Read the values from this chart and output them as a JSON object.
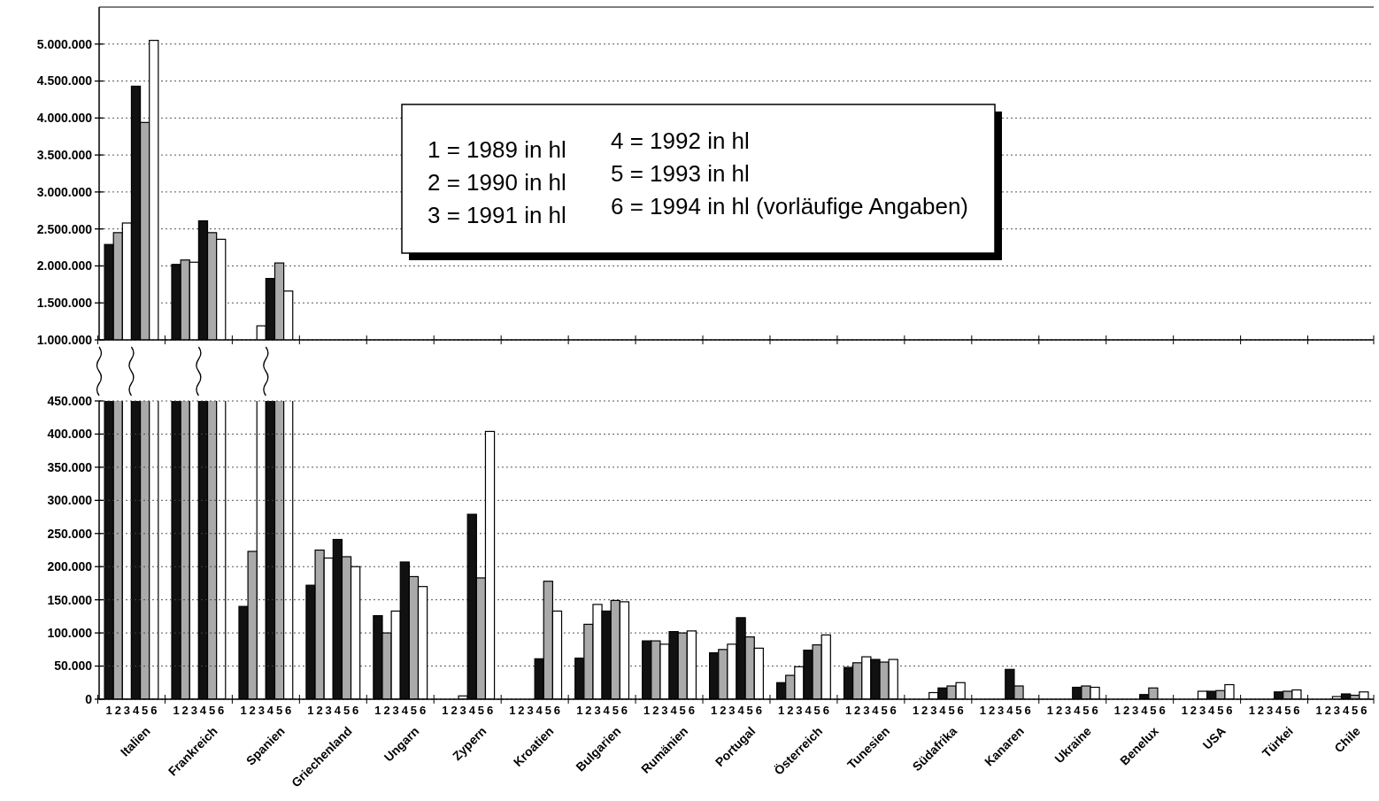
{
  "chart_data": [
    {
      "type": "bar",
      "categories": [
        null,
        null,
        null,
        null,
        null,
        null,
        null,
        null,
        null,
        null,
        null,
        null,
        null,
        null,
        null,
        null,
        null,
        null,
        null
      ],
      "series": [
        {
          "color": "#111111",
          "values": [
            2290000,
            2020000,
            null,
            null,
            null,
            null,
            null,
            null,
            null,
            null,
            null,
            null,
            null,
            null,
            null,
            null,
            null,
            null,
            null
          ]
        },
        {
          "color": "#aaaaaa",
          "values": [
            2450000,
            2080000,
            null,
            null,
            null,
            null,
            null,
            null,
            null,
            null,
            null,
            null,
            null,
            null,
            null,
            null,
            null,
            null,
            null
          ]
        },
        {
          "color": "#ffffff",
          "values": [
            2580000,
            2050000,
            1190000,
            null,
            null,
            null,
            null,
            null,
            null,
            null,
            null,
            null,
            null,
            null,
            null,
            null,
            null,
            null,
            null
          ]
        },
        {
          "color": "#111111",
          "values": [
            4430000,
            2610000,
            1830000,
            null,
            null,
            null,
            null,
            null,
            null,
            null,
            null,
            null,
            null,
            null,
            null,
            null,
            null,
            null,
            null
          ]
        },
        {
          "color": "#aaaaaa",
          "values": [
            3940000,
            2450000,
            2040000,
            null,
            null,
            null,
            null,
            null,
            null,
            null,
            null,
            null,
            null,
            null,
            null,
            null,
            null,
            null,
            null
          ]
        },
        {
          "color": "#ffffff",
          "values": [
            5050000,
            2360000,
            1660000,
            null,
            null,
            null,
            null,
            null,
            null,
            null,
            null,
            null,
            null,
            null,
            null,
            null,
            null,
            null,
            null
          ]
        }
      ],
      "ylim": [
        1000000,
        5500000
      ],
      "yticks": [
        {
          "value": 1000000,
          "label": "1.000.000"
        },
        {
          "value": 1500000,
          "label": "1.500.000"
        },
        {
          "value": 2000000,
          "label": "2.000.000"
        },
        {
          "value": 2500000,
          "label": "2.500.000"
        },
        {
          "value": 3000000,
          "label": "3.000.000"
        },
        {
          "value": 3500000,
          "label": "3.500.000"
        },
        {
          "value": 4000000,
          "label": "4.000.000"
        },
        {
          "value": 4500000,
          "label": "4.500.000"
        },
        {
          "value": 5000000,
          "label": "5.000.000"
        }
      ],
      "grid": "y",
      "tick_labels": "y",
      "annotations": [
        "1 = 1989 in hl",
        "2 = 1990 in hl",
        "3 = 1991 in hl",
        "4 = 1992 in hl",
        "5 = 1993 in hl",
        "6 = 1994 in hl (vorläufige Angaben)"
      ]
    },
    {
      "type": "bar",
      "categories": [
        "Italien",
        "Frankreich",
        "Spanien",
        "Griechenland",
        "Ungarn",
        "Zypern",
        "Kroatien",
        "Bulgarien",
        "Rumänien",
        "Portugal",
        "Österreich",
        "Tunesien",
        "Südafrika",
        "Kanaren",
        "Ukraine",
        "Benelux",
        "USA",
        "Türkei",
        "Chile"
      ],
      "series": [
        {
          "name": "1",
          "color": "#111111",
          "values": [
            null,
            null,
            140000,
            172000,
            126000,
            null,
            null,
            62000,
            88000,
            70000,
            25000,
            48000,
            null,
            null,
            null,
            null,
            null,
            null,
            null
          ]
        },
        {
          "name": "2",
          "color": "#aaaaaa",
          "values": [
            null,
            null,
            223000,
            225000,
            100000,
            null,
            null,
            113000,
            88000,
            75000,
            36000,
            55000,
            null,
            null,
            null,
            null,
            null,
            null,
            null
          ]
        },
        {
          "name": "3",
          "color": "#ffffff",
          "values": [
            null,
            null,
            null,
            213000,
            133000,
            5000,
            null,
            143000,
            83000,
            83000,
            49000,
            64000,
            10000,
            null,
            null,
            null,
            12000,
            null,
            4000
          ]
        },
        {
          "name": "4",
          "color": "#111111",
          "values": [
            null,
            null,
            null,
            241000,
            207000,
            279000,
            61000,
            133000,
            102000,
            123000,
            74000,
            60000,
            17000,
            45000,
            18000,
            7000,
            12000,
            11000,
            8000
          ]
        },
        {
          "name": "5",
          "color": "#aaaaaa",
          "values": [
            null,
            null,
            null,
            215000,
            185000,
            183000,
            178000,
            149000,
            100000,
            94000,
            82000,
            56000,
            20000,
            20000,
            20000,
            17000,
            13000,
            12000,
            6000
          ]
        },
        {
          "name": "6",
          "color": "#ffffff",
          "values": [
            null,
            null,
            null,
            200000,
            170000,
            404000,
            133000,
            147000,
            103000,
            77000,
            97000,
            60000,
            25000,
            null,
            18000,
            null,
            22000,
            14000,
            11000
          ]
        }
      ],
      "ylim": [
        0,
        450000
      ],
      "yticks": [
        0,
        {
          "value": 50000,
          "label": "50.000"
        },
        {
          "value": 100000,
          "label": "100.000"
        },
        {
          "value": 150000,
          "label": "150.000"
        },
        {
          "value": 200000,
          "label": "200.000"
        },
        {
          "value": 250000,
          "label": "250.000"
        },
        {
          "value": 300000,
          "label": "300.000"
        },
        {
          "value": 350000,
          "label": "350.000"
        },
        {
          "value": 400000,
          "label": "400.000"
        },
        {
          "value": 450000,
          "label": "450.000"
        }
      ],
      "grid": "y"
    }
  ]
}
